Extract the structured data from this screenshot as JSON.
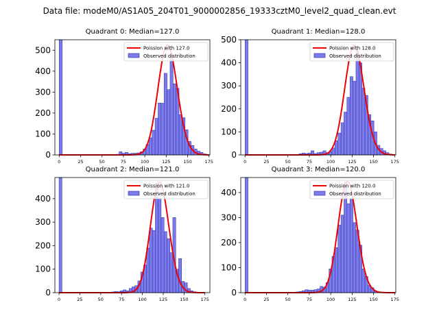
{
  "figure_title": "Data file: modeM0/AS1A05_204T01_9000002856_19333cztM0_level2_quad_clean.evt",
  "colors": {
    "bar_fill": "#7b7bea",
    "bar_edge": "#2a2aa8",
    "curve": "#ee0000"
  },
  "chart_data": [
    {
      "type": "bar",
      "title": "Quadrant 0: Median=127.0",
      "xlim": [
        -5,
        176
      ],
      "ylim": [
        0,
        550
      ],
      "xticks": [
        0,
        25,
        50,
        75,
        100,
        125,
        150,
        175
      ],
      "yticks": [
        0,
        100,
        200,
        300,
        400,
        500
      ],
      "bin_width": 3.5,
      "bins_x": [
        0,
        66.5,
        70,
        73.5,
        77,
        80.5,
        84,
        87.5,
        91,
        94.5,
        98,
        101.5,
        105,
        108.5,
        112,
        115.5,
        119,
        122.5,
        126,
        129.5,
        133,
        136.5,
        140,
        143.5,
        147,
        150.5,
        154,
        157.5,
        161,
        164.5,
        168
      ],
      "counts": [
        550,
        3,
        15,
        8,
        12,
        6,
        8,
        8,
        10,
        15,
        28,
        50,
        82,
        118,
        175,
        248,
        247,
        390,
        312,
        470,
        340,
        318,
        192,
        178,
        120,
        65,
        45,
        28,
        18,
        12,
        5
      ],
      "series": [
        {
          "name": "Poission with 127.0",
          "kind": "line",
          "mean": 127.0,
          "peak": 525
        },
        {
          "name": "Observed distribution",
          "kind": "bars"
        }
      ],
      "legend_loc": "upper right"
    },
    {
      "type": "bar",
      "title": "Quadrant 1: Median=128.0",
      "xlim": [
        -5,
        176
      ],
      "ylim": [
        0,
        500
      ],
      "xticks": [
        0,
        25,
        50,
        75,
        100,
        125,
        150,
        175
      ],
      "yticks": [
        0,
        100,
        200,
        300,
        400,
        500
      ],
      "bin_width": 3.5,
      "bins_x": [
        0,
        63,
        66.5,
        70,
        73.5,
        77,
        80.5,
        84,
        87.5,
        91,
        94.5,
        98,
        101.5,
        105,
        108.5,
        112,
        115.5,
        119,
        122.5,
        126,
        129.5,
        133,
        136.5,
        140,
        143.5,
        147,
        150.5,
        154,
        157.5,
        161,
        164.5,
        168
      ],
      "counts": [
        500,
        5,
        8,
        6,
        8,
        18,
        6,
        10,
        12,
        18,
        10,
        15,
        30,
        62,
        95,
        140,
        186,
        250,
        340,
        320,
        450,
        400,
        290,
        258,
        175,
        148,
        100,
        42,
        28,
        18,
        10,
        4
      ],
      "series": [
        {
          "name": "Poission with 128.0",
          "kind": "line",
          "mean": 128.0,
          "peak": 475
        },
        {
          "name": "Observed distribution",
          "kind": "bars"
        }
      ],
      "legend_loc": "upper right"
    },
    {
      "type": "bar",
      "title": "Quadrant 2: Median=121.0",
      "xlim": [
        -5,
        181
      ],
      "ylim": [
        0,
        490
      ],
      "xticks": [
        0,
        25,
        50,
        75,
        100,
        125,
        150,
        175
      ],
      "yticks": [
        0,
        100,
        200,
        300,
        400
      ],
      "bin_width": 3.5,
      "bins_x": [
        0,
        63,
        66.5,
        70,
        73.5,
        77,
        80.5,
        84,
        87.5,
        91,
        94.5,
        98,
        101.5,
        105,
        108.5,
        112,
        115.5,
        119,
        122.5,
        126,
        129.5,
        133,
        136.5,
        140,
        143.5,
        147,
        150.5,
        154,
        157.5,
        161
      ],
      "counts": [
        490,
        3,
        5,
        4,
        8,
        12,
        8,
        18,
        25,
        30,
        50,
        88,
        118,
        190,
        275,
        265,
        450,
        400,
        320,
        260,
        230,
        170,
        320,
        100,
        145,
        48,
        42,
        18,
        8,
        4
      ],
      "series": [
        {
          "name": "Poission with 121.0",
          "kind": "line",
          "mean": 121.0,
          "peak": 470
        },
        {
          "name": "Observed distribution",
          "kind": "bars"
        }
      ],
      "legend_loc": "upper right"
    },
    {
      "type": "bar",
      "title": "Quadrant 3: Median=120.0",
      "xlim": [
        -5,
        176
      ],
      "ylim": [
        0,
        460
      ],
      "xticks": [
        0,
        25,
        50,
        75,
        100,
        125,
        150,
        175
      ],
      "yticks": [
        0,
        100,
        200,
        300,
        400
      ],
      "bin_width": 3.5,
      "bins_x": [
        0,
        59.5,
        63,
        66.5,
        70,
        73.5,
        77,
        80.5,
        84,
        87.5,
        91,
        94.5,
        98,
        101.5,
        105,
        108.5,
        112,
        115.5,
        119,
        122.5,
        126,
        129.5,
        133,
        136.5,
        140,
        143.5,
        147,
        150.5,
        154
      ],
      "counts": [
        460,
        3,
        5,
        8,
        12,
        10,
        10,
        12,
        15,
        25,
        22,
        40,
        95,
        145,
        180,
        270,
        310,
        440,
        355,
        375,
        280,
        250,
        190,
        95,
        65,
        30,
        20,
        6,
        3
      ],
      "series": [
        {
          "name": "Poission with 120.0",
          "kind": "line",
          "mean": 120.0,
          "peak": 445
        },
        {
          "name": "Observed distribution",
          "kind": "bars"
        }
      ],
      "legend_loc": "upper right"
    }
  ]
}
